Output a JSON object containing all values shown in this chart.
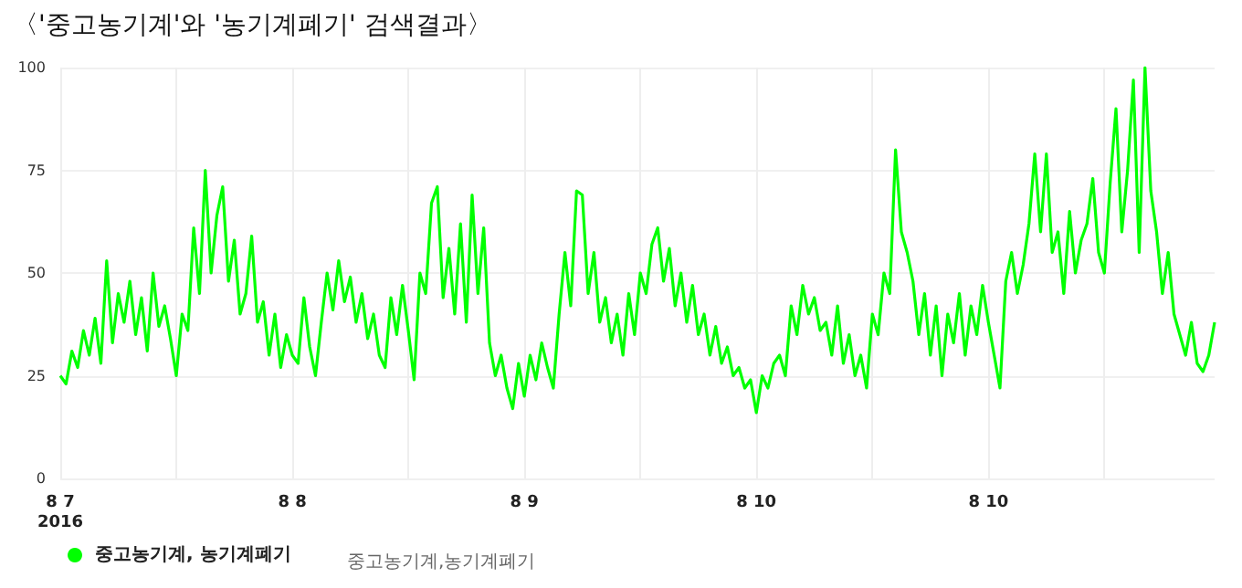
{
  "chart_data": {
    "type": "line",
    "title": "〈'중고농기계'와 '농기계폐기' 검색결과〉",
    "categories": [
      "8 7\n2016",
      null,
      null,
      null,
      null,
      null,
      null,
      null,
      null,
      null,
      null,
      null,
      null,
      null,
      null,
      null,
      null,
      null,
      null,
      null,
      null,
      null,
      null,
      null,
      null,
      null,
      null,
      null,
      null,
      null,
      null,
      null,
      null,
      null,
      null,
      null,
      null,
      null,
      null,
      null,
      "8 8",
      null,
      null,
      null,
      null,
      null,
      null,
      null,
      null,
      null,
      null,
      null,
      null,
      null,
      null,
      null,
      null,
      null,
      null,
      null,
      null,
      null,
      null,
      null,
      null,
      null,
      null,
      null,
      null,
      null,
      null,
      null,
      null,
      null,
      null,
      null,
      null,
      null,
      null,
      null,
      "8 9",
      null,
      null,
      null,
      null,
      null,
      null,
      null,
      null,
      null,
      null,
      null,
      null,
      null,
      null,
      null,
      null,
      null,
      null,
      null,
      null,
      null,
      null,
      null,
      null,
      null,
      null,
      null,
      null,
      null,
      null,
      null,
      null,
      null,
      null,
      null,
      null,
      null,
      null,
      null,
      "8 10",
      null,
      null,
      null,
      null,
      null,
      null,
      null,
      null,
      null,
      null,
      null,
      null,
      null,
      null,
      null,
      null,
      null,
      null,
      null,
      null,
      null,
      null,
      null,
      null,
      null,
      null,
      null,
      null,
      null,
      null,
      null,
      null,
      null,
      null,
      null,
      null,
      null,
      null,
      null,
      "8 10",
      null,
      null,
      null,
      null,
      null,
      null,
      null,
      null,
      null,
      null,
      null,
      null,
      null,
      null,
      null,
      null,
      null,
      null,
      null,
      null,
      null,
      null,
      null,
      null,
      null,
      null,
      null,
      null,
      null,
      null,
      null,
      null,
      null,
      null,
      null,
      null,
      null,
      null,
      null
    ],
    "series": [
      {
        "name": "중고농기계, 농기계폐기",
        "color": "#00ff00",
        "values": [
          25,
          23,
          31,
          27,
          36,
          30,
          39,
          28,
          53,
          33,
          45,
          38,
          48,
          35,
          44,
          31,
          50,
          37,
          42,
          34,
          25,
          40,
          36,
          61,
          45,
          75,
          50,
          64,
          71,
          48,
          58,
          40,
          45,
          59,
          38,
          43,
          30,
          40,
          27,
          35,
          30,
          28,
          44,
          32,
          25,
          38,
          50,
          41,
          53,
          43,
          49,
          38,
          45,
          34,
          40,
          30,
          27,
          44,
          35,
          47,
          36,
          24,
          50,
          45,
          67,
          71,
          44,
          56,
          40,
          62,
          38,
          69,
          45,
          61,
          33,
          25,
          30,
          22,
          17,
          28,
          20,
          30,
          24,
          33,
          27,
          22,
          40,
          55,
          42,
          70,
          69,
          45,
          55,
          38,
          44,
          33,
          40,
          30,
          45,
          35,
          50,
          45,
          57,
          61,
          48,
          56,
          42,
          50,
          38,
          47,
          35,
          40,
          30,
          37,
          28,
          32,
          25,
          27,
          22,
          24,
          16,
          25,
          22,
          28,
          30,
          25,
          42,
          35,
          47,
          40,
          44,
          36,
          38,
          30,
          42,
          28,
          35,
          25,
          30,
          22,
          40,
          35,
          50,
          45,
          80,
          60,
          55,
          48,
          35,
          45,
          30,
          42,
          25,
          40,
          33,
          45,
          30,
          42,
          35,
          47,
          38,
          30,
          22,
          48,
          55,
          45,
          52,
          62,
          79,
          60,
          79,
          55,
          60,
          45,
          65,
          50,
          58,
          62,
          73,
          55,
          50,
          72,
          90,
          60,
          75,
          97,
          55,
          100,
          70,
          60,
          45,
          55,
          40,
          35,
          30,
          38,
          28,
          26,
          30,
          38
        ]
      }
    ],
    "ylim": [
      0,
      100
    ],
    "yticks": [
      0,
      25,
      50,
      75,
      100
    ],
    "grid": true,
    "legend": "bottom left",
    "annotations": [
      "중고농기계,농기계폐기"
    ]
  }
}
